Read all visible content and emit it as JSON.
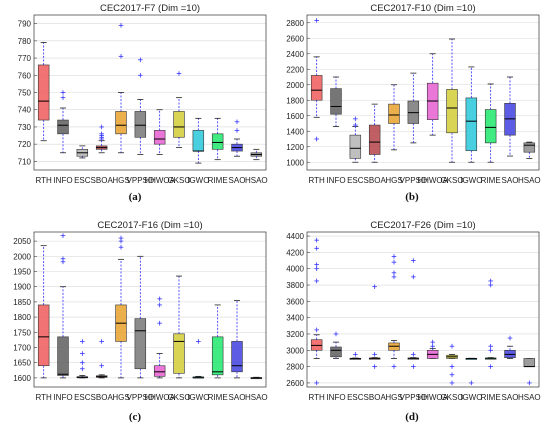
{
  "chart_data": [
    {
      "type": "box",
      "title": "CEC2017-F7 (Dim =10)",
      "caption": "(a)",
      "categories": [
        "RTH",
        "INFO",
        "ESC",
        "SBOA",
        "HGS",
        "VPPSO",
        "HHWOA",
        "GKSO",
        "IGWO",
        "RIME",
        "SAO",
        "HSAO"
      ],
      "ylim": [
        705,
        795
      ],
      "yticks": [
        710,
        720,
        730,
        740,
        750,
        760,
        770,
        780,
        790
      ],
      "boxes": [
        {
          "wlo": 722,
          "q1": 734,
          "med": 745,
          "q3": 766,
          "whi": 779,
          "out": []
        },
        {
          "wlo": 715,
          "q1": 726,
          "med": 731,
          "q3": 734,
          "whi": 741,
          "out": [
            750,
            747
          ]
        },
        {
          "wlo": 712,
          "q1": 713,
          "med": 715,
          "q3": 717,
          "whi": 719,
          "out": []
        },
        {
          "wlo": 715,
          "q1": 717,
          "med": 718,
          "q3": 719,
          "whi": 722,
          "out": [
            730,
            726,
            725,
            724,
            723
          ]
        },
        {
          "wlo": 715,
          "q1": 726,
          "med": 731,
          "q3": 739,
          "whi": 750,
          "out": [
            789,
            771
          ]
        },
        {
          "wlo": 714,
          "q1": 724,
          "med": 731,
          "q3": 739,
          "whi": 746,
          "out": [
            769,
            760
          ]
        },
        {
          "wlo": 714,
          "q1": 720,
          "med": 723,
          "q3": 728,
          "whi": 740,
          "out": []
        },
        {
          "wlo": 718,
          "q1": 724,
          "med": 730,
          "q3": 739,
          "whi": 747,
          "out": [
            761
          ]
        },
        {
          "wlo": 709,
          "q1": 716,
          "med": 716,
          "q3": 728,
          "whi": 735,
          "out": []
        },
        {
          "wlo": 711,
          "q1": 717,
          "med": 721,
          "q3": 726,
          "whi": 735,
          "out": []
        },
        {
          "wlo": 713,
          "q1": 716,
          "med": 718,
          "q3": 720,
          "whi": 723,
          "out": [
            733,
            728
          ]
        },
        {
          "wlo": 711,
          "q1": 713,
          "med": 714,
          "q3": 715,
          "whi": 717,
          "out": []
        }
      ]
    },
    {
      "type": "box",
      "title": "CEC2017-F10 (Dim =10)",
      "caption": "(b)",
      "categories": [
        "RTH",
        "INFO",
        "ESC",
        "SBOA",
        "HGS",
        "VPPSO",
        "HHWOA",
        "GKSO",
        "IGWO",
        "RIME",
        "SAO",
        "HSAO"
      ],
      "ylim": [
        900,
        2900
      ],
      "yticks": [
        1000,
        1200,
        1400,
        1600,
        1800,
        2000,
        2200,
        2400,
        2600,
        2800
      ],
      "boxes": [
        {
          "wlo": 1580,
          "q1": 1800,
          "med": 1930,
          "q3": 2120,
          "whi": 2360,
          "out": [
            2830,
            1300
          ]
        },
        {
          "wlo": 1460,
          "q1": 1620,
          "med": 1720,
          "q3": 1950,
          "whi": 2100,
          "out": []
        },
        {
          "wlo": 1000,
          "q1": 1050,
          "med": 1180,
          "q3": 1350,
          "whi": 1460,
          "out": [
            1560,
            1480
          ]
        },
        {
          "wlo": 1000,
          "q1": 1100,
          "med": 1260,
          "q3": 1480,
          "whi": 1750,
          "out": []
        },
        {
          "wlo": 1160,
          "q1": 1500,
          "med": 1610,
          "q3": 1750,
          "whi": 2000,
          "out": []
        },
        {
          "wlo": 1250,
          "q1": 1500,
          "med": 1640,
          "q3": 1790,
          "whi": 2150,
          "out": []
        },
        {
          "wlo": 1350,
          "q1": 1550,
          "med": 1790,
          "q3": 2020,
          "whi": 2400,
          "out": []
        },
        {
          "wlo": 1000,
          "q1": 1380,
          "med": 1700,
          "q3": 1940,
          "whi": 2590,
          "out": []
        },
        {
          "wlo": 1000,
          "q1": 1150,
          "med": 1530,
          "q3": 1830,
          "whi": 2230,
          "out": []
        },
        {
          "wlo": 1000,
          "q1": 1250,
          "med": 1450,
          "q3": 1680,
          "whi": 2010,
          "out": []
        },
        {
          "wlo": 1080,
          "q1": 1350,
          "med": 1560,
          "q3": 1760,
          "whi": 2100,
          "out": []
        },
        {
          "wlo": 1050,
          "q1": 1130,
          "med": 1220,
          "q3": 1250,
          "whi": 1260,
          "out": []
        }
      ]
    },
    {
      "type": "box",
      "title": "CEC2017-F16 (Dim =10)",
      "caption": "(c)",
      "categories": [
        "RTH",
        "INFO",
        "ESC",
        "SBOA",
        "HGS",
        "VPPSO",
        "HHWOA",
        "GKSO",
        "IGWO",
        "RIME",
        "SAO",
        "HSAO"
      ],
      "ylim": [
        1570,
        2080
      ],
      "yticks": [
        1600,
        1650,
        1700,
        1750,
        1800,
        1850,
        1900,
        1950,
        2000,
        2050
      ],
      "boxes": [
        {
          "wlo": 1600,
          "q1": 1640,
          "med": 1735,
          "q3": 1840,
          "whi": 2035,
          "out": []
        },
        {
          "wlo": 1600,
          "q1": 1608,
          "med": 1612,
          "q3": 1735,
          "whi": 1900,
          "out": [
            2068,
            1992,
            1982
          ]
        },
        {
          "wlo": 1600,
          "q1": 1601,
          "med": 1602,
          "q3": 1604,
          "whi": 1608,
          "out": [
            1720,
            1680,
            1650,
            1630
          ]
        },
        {
          "wlo": 1600,
          "q1": 1602,
          "med": 1604,
          "q3": 1607,
          "whi": 1610,
          "out": [
            1720,
            1640
          ]
        },
        {
          "wlo": 1600,
          "q1": 1720,
          "med": 1780,
          "q3": 1840,
          "whi": 1990,
          "out": [
            2060,
            2050,
            2030
          ]
        },
        {
          "wlo": 1600,
          "q1": 1630,
          "med": 1755,
          "q3": 1795,
          "whi": 2000,
          "out": []
        },
        {
          "wlo": 1600,
          "q1": 1605,
          "med": 1620,
          "q3": 1640,
          "whi": 1680,
          "out": [
            1860,
            1840,
            1780
          ]
        },
        {
          "wlo": 1600,
          "q1": 1615,
          "med": 1720,
          "q3": 1745,
          "whi": 1935,
          "out": []
        },
        {
          "wlo": 1600,
          "q1": 1601,
          "med": 1602,
          "q3": 1603,
          "whi": 1605,
          "out": [
            1720
          ]
        },
        {
          "wlo": 1600,
          "q1": 1610,
          "med": 1620,
          "q3": 1735,
          "whi": 1840,
          "out": []
        },
        {
          "wlo": 1600,
          "q1": 1620,
          "med": 1640,
          "q3": 1720,
          "whi": 1855,
          "out": []
        },
        {
          "wlo": 1600,
          "q1": 1600,
          "med": 1600,
          "q3": 1601,
          "whi": 1602,
          "out": []
        }
      ]
    },
    {
      "type": "box",
      "title": "CEC2017-F26 (Dim =10)",
      "caption": "(d)",
      "categories": [
        "RTH",
        "INFO",
        "ESC",
        "SBOA",
        "HGS",
        "VPPSO",
        "HHWOA",
        "GKSO",
        "IGWO",
        "RIME",
        "SAO",
        "HSAO"
      ],
      "ylim": [
        2550,
        4450
      ],
      "yticks": [
        2600,
        2800,
        3000,
        3200,
        3400,
        3600,
        3800,
        4000,
        4200,
        4400
      ],
      "boxes": [
        {
          "wlo": 2900,
          "q1": 3000,
          "med": 3060,
          "q3": 3130,
          "whi": 3190,
          "out": [
            4350,
            4250,
            4050,
            4000,
            3850,
            3250,
            2600
          ]
        },
        {
          "wlo": 2900,
          "q1": 2920,
          "med": 3000,
          "q3": 3040,
          "whi": 3100,
          "out": [
            3200
          ]
        },
        {
          "wlo": 2900,
          "q1": 2900,
          "med": 2900,
          "q3": 2902,
          "whi": 2905,
          "out": [
            2950
          ]
        },
        {
          "wlo": 2900,
          "q1": 2900,
          "med": 2902,
          "q3": 2905,
          "whi": 2910,
          "out": [
            3780,
            2950,
            2800
          ]
        },
        {
          "wlo": 2900,
          "q1": 3000,
          "med": 3050,
          "q3": 3090,
          "whi": 3120,
          "out": [
            4150,
            4080,
            3950,
            3900,
            2800
          ]
        },
        {
          "wlo": 2900,
          "q1": 2900,
          "med": 2902,
          "q3": 2905,
          "whi": 2910,
          "out": [
            4100,
            3900,
            2950,
            2800
          ]
        },
        {
          "wlo": 2900,
          "q1": 2900,
          "med": 2950,
          "q3": 3000,
          "whi": 3020,
          "out": [
            3100,
            3050
          ]
        },
        {
          "wlo": 2900,
          "q1": 2900,
          "med": 2920,
          "q3": 2940,
          "whi": 2950,
          "out": [
            3050,
            2800,
            2700,
            2600
          ]
        },
        {
          "wlo": 2900,
          "q1": 2900,
          "med": 2900,
          "q3": 2901,
          "whi": 2902,
          "out": [
            2600
          ]
        },
        {
          "wlo": 2900,
          "q1": 2900,
          "med": 2902,
          "q3": 2905,
          "whi": 2910,
          "out": [
            3850,
            3800,
            3050,
            3000,
            2800
          ]
        },
        {
          "wlo": 2900,
          "q1": 2910,
          "med": 2950,
          "q3": 3000,
          "whi": 3050,
          "out": [
            3150
          ]
        },
        {
          "wlo": 2800,
          "q1": 2800,
          "med": 2800,
          "q3": 2900,
          "whi": 2900,
          "out": [
            2600
          ]
        }
      ]
    }
  ],
  "colors": {
    "boxes": [
      "#ef5b5b",
      "#5e5e5e",
      "#b4b4b4",
      "#b5444a",
      "#e8a22c",
      "#777777",
      "#e65fd1",
      "#d2cd35",
      "#28c8dc",
      "#1ee86b",
      "#3f3fe0",
      "#8c8c8c"
    ],
    "median": "#000000",
    "whisker": "#2a2aff",
    "outlier": "#3535ff"
  }
}
